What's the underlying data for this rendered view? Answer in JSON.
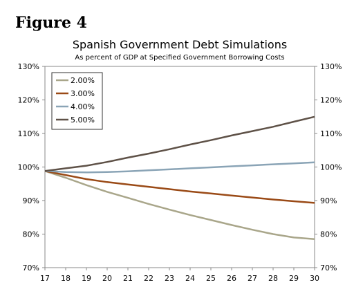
{
  "figure_label": "Figure 4",
  "chart_data": {
    "type": "line",
    "title": "Spanish Government Debt Simulations",
    "subtitle": "As percent of GDP at Specified Government Borrowing Costs",
    "xlabel": "",
    "ylabel": "",
    "x": [
      17,
      18,
      19,
      20,
      21,
      22,
      23,
      24,
      25,
      26,
      27,
      28,
      29,
      30
    ],
    "xlim": [
      17,
      30
    ],
    "ylim": [
      70,
      130
    ],
    "y_ticks": [
      70,
      80,
      90,
      100,
      110,
      120,
      130
    ],
    "y_tick_labels": [
      "70%",
      "80%",
      "90%",
      "100%",
      "110%",
      "120%",
      "130%"
    ],
    "right_axis_mirrors_left": true,
    "grid": false,
    "legend_position": "top-left",
    "series": [
      {
        "name": "2.00%",
        "color": "#a9a68a",
        "values": [
          98.8,
          96.8,
          94.6,
          92.6,
          90.8,
          89.0,
          87.3,
          85.7,
          84.2,
          82.7,
          81.3,
          80.0,
          79.0,
          78.5
        ]
      },
      {
        "name": "3.00%",
        "color": "#9a4a16",
        "values": [
          98.8,
          97.6,
          96.4,
          95.5,
          94.8,
          94.1,
          93.4,
          92.7,
          92.1,
          91.5,
          90.9,
          90.3,
          89.8,
          89.3
        ]
      },
      {
        "name": "4.00%",
        "color": "#8aa4b6",
        "values": [
          98.8,
          98.5,
          98.4,
          98.5,
          98.7,
          99.0,
          99.3,
          99.6,
          99.9,
          100.2,
          100.5,
          100.8,
          101.1,
          101.4
        ]
      },
      {
        "name": "5.00%",
        "color": "#5e5147",
        "values": [
          98.8,
          99.6,
          100.4,
          101.5,
          102.8,
          104.0,
          105.3,
          106.7,
          108.0,
          109.4,
          110.7,
          112.0,
          113.5,
          115.0
        ]
      }
    ]
  }
}
